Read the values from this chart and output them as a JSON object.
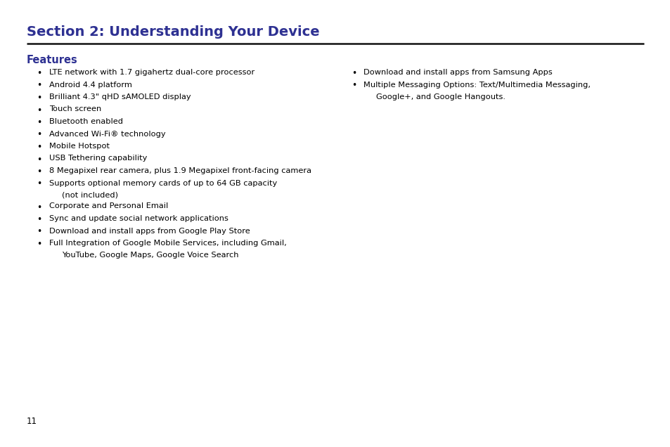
{
  "title": "Section 2: Understanding Your Device",
  "title_color": "#2e3192",
  "title_fontsize": 14,
  "section_label": "Features",
  "section_label_color": "#2e3192",
  "section_label_fontsize": 10.5,
  "bg_color": "#ffffff",
  "text_color": "#000000",
  "bullet_color": "#000000",
  "page_number": "11",
  "left_bullets": [
    "LTE network with 1.7 gigahertz dual-core processor",
    "Android 4.4 platform",
    "Brilliant 4.3\" qHD sAMOLED display",
    "Touch screen",
    "Bluetooth enabled",
    "Advanced Wi-Fi® technology",
    "Mobile Hotspot",
    "USB Tethering capability",
    "8 Megapixel rear camera, plus 1.9 Megapixel front-facing camera",
    "Supports optional memory cards of up to 64 GB capacity\n(not included)",
    "Corporate and Personal Email",
    "Sync and update social network applications",
    "Download and install apps from Google Play Store",
    "Full Integration of Google Mobile Services, including Gmail,\nYouTube, Google Maps, Google Voice Search"
  ],
  "right_bullets": [
    "Download and install apps from Samsung Apps",
    "Multiple Messaging Options: Text/Multimedia Messaging,\nGoogle+, and Google Hangouts."
  ]
}
